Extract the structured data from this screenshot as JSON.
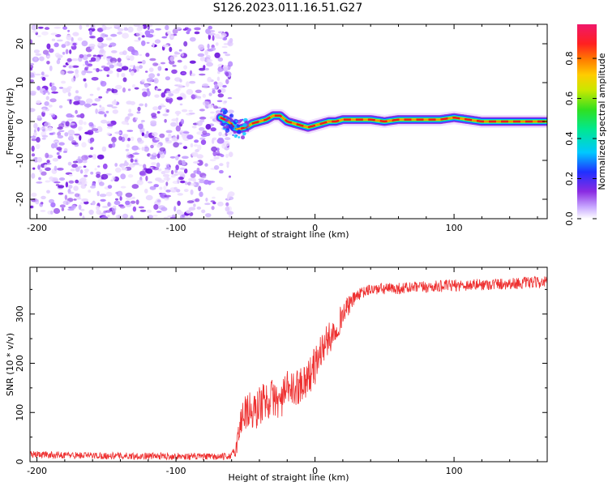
{
  "title": "S126.2023.011.16.51.G27",
  "chart_data": [
    {
      "type": "heatmap",
      "name": "spectrogram",
      "xlabel": "Height of straight line (km)",
      "ylabel": "Frequency (Hz)",
      "xlim": [
        -205,
        167
      ],
      "ylim": [
        -25,
        25
      ],
      "xticks": [
        -200,
        -100,
        0,
        100
      ],
      "yticks": [
        -20,
        -10,
        0,
        10,
        20
      ],
      "noise_region_x": [
        -205,
        -60
      ],
      "signal_track": {
        "x": [
          -68,
          -62,
          -58,
          -55,
          -50,
          -45,
          -40,
          -35,
          -30,
          -25,
          -20,
          -15,
          -10,
          -5,
          0,
          5,
          10,
          15,
          20,
          25,
          30,
          40,
          50,
          60,
          70,
          80,
          90,
          100,
          110,
          120,
          130,
          140,
          150,
          160,
          167
        ],
        "freq": [
          1.0,
          0.0,
          -1.5,
          -2.0,
          -1.5,
          -0.5,
          0.0,
          0.5,
          1.5,
          1.5,
          0.0,
          -0.5,
          -1.0,
          -1.5,
          -1.0,
          -0.5,
          0.0,
          0.0,
          0.5,
          0.5,
          0.5,
          0.5,
          0.0,
          0.5,
          0.5,
          0.5,
          0.5,
          1.0,
          0.5,
          0.0,
          0.0,
          0.0,
          0.0,
          0.0,
          0.0
        ]
      }
    },
    {
      "type": "colorbar",
      "name": "amplitude-colorbar",
      "label": "Normalized spectral amplitude",
      "range": [
        0,
        0.97
      ],
      "ticks": [
        "0.0",
        "0.2",
        "0.4",
        "0.6",
        "0.8"
      ],
      "tick_values": [
        0.0,
        0.2,
        0.4,
        0.6,
        0.8
      ]
    },
    {
      "type": "line",
      "name": "snr",
      "color": "#ee3030",
      "xlabel": "Height of straight line (km)",
      "ylabel": "SNR (10 * v/v)",
      "xlim": [
        -205,
        167
      ],
      "ylim": [
        0,
        395
      ],
      "xticks": [
        -200,
        -100,
        0,
        100
      ],
      "yticks": [
        0,
        100,
        200,
        300
      ],
      "trend": {
        "x": [
          -205,
          -190,
          -150,
          -100,
          -75,
          -65,
          -60,
          -57,
          -52,
          -48,
          -44,
          -40,
          -35,
          -30,
          -25,
          -20,
          -15,
          -10,
          -5,
          0,
          5,
          10,
          15,
          20,
          25,
          30,
          40,
          60,
          80,
          100,
          120,
          140,
          167
        ],
        "y": [
          15,
          14,
          12,
          11,
          10,
          10,
          12,
          25,
          100,
          105,
          95,
          115,
          125,
          130,
          120,
          150,
          145,
          160,
          170,
          195,
          230,
          250,
          270,
          300,
          320,
          338,
          350,
          352,
          355,
          358,
          360,
          362,
          365
        ]
      },
      "noise_amplitude": {
        "x": [
          -205,
          -60,
          -50,
          -20,
          0,
          20,
          30,
          167
        ],
        "amp": [
          7,
          7,
          45,
          35,
          40,
          25,
          12,
          12
        ]
      }
    }
  ]
}
